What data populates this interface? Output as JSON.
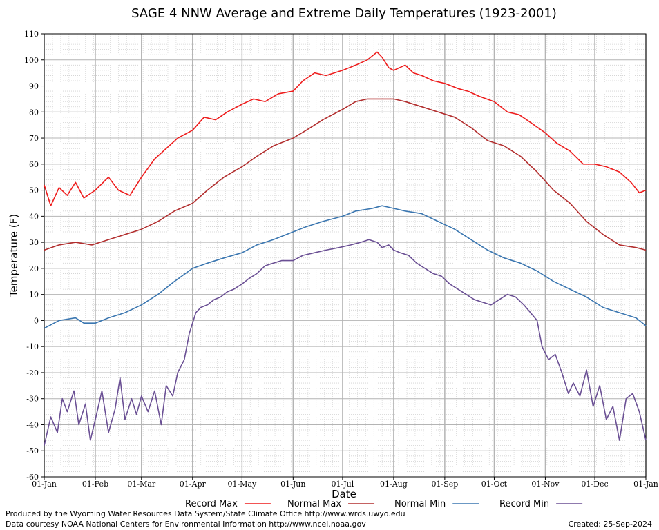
{
  "chart_data": {
    "type": "line",
    "title": "SAGE 4 NNW Average and Extreme Daily Temperatures (1923-2001)",
    "xlabel": "Date",
    "ylabel": "Temperature (F)",
    "ylim": [
      -60,
      110
    ],
    "yticks": [
      -60,
      -50,
      -40,
      -30,
      -20,
      -10,
      0,
      10,
      20,
      30,
      40,
      50,
      60,
      70,
      80,
      90,
      100,
      110
    ],
    "xticks": [
      {
        "day": 1,
        "label": "01-Jan"
      },
      {
        "day": 32,
        "label": "01-Feb"
      },
      {
        "day": 60,
        "label": "01-Mar"
      },
      {
        "day": 91,
        "label": "01-Apr"
      },
      {
        "day": 121,
        "label": "01-May"
      },
      {
        "day": 152,
        "label": "01-Jun"
      },
      {
        "day": 182,
        "label": "01-Jul"
      },
      {
        "day": 213,
        "label": "01-Aug"
      },
      {
        "day": 244,
        "label": "01-Sep"
      },
      {
        "day": 274,
        "label": "01-Oct"
      },
      {
        "day": 305,
        "label": "01-Nov"
      },
      {
        "day": 335,
        "label": "01-Dec"
      },
      {
        "day": 366,
        "label": "01-Jan"
      }
    ],
    "grid": true,
    "legend_position": "bottom",
    "series": [
      {
        "name": "Record Max",
        "color": "#ee1c1c",
        "x": [
          1,
          5,
          10,
          15,
          20,
          25,
          32,
          40,
          46,
          53,
          60,
          68,
          75,
          82,
          91,
          98,
          105,
          112,
          121,
          128,
          135,
          143,
          152,
          158,
          165,
          172,
          182,
          190,
          197,
          203,
          206,
          210,
          213,
          220,
          225,
          230,
          237,
          244,
          252,
          258,
          265,
          274,
          282,
          289,
          296,
          305,
          312,
          320,
          328,
          335,
          342,
          350,
          357,
          362,
          366
        ],
        "values": [
          52,
          44,
          51,
          48,
          53,
          47,
          50,
          55,
          50,
          48,
          55,
          62,
          66,
          70,
          73,
          78,
          77,
          80,
          83,
          85,
          84,
          87,
          88,
          92,
          95,
          94,
          96,
          98,
          100,
          103,
          101,
          97,
          96,
          98,
          95,
          94,
          92,
          91,
          89,
          88,
          86,
          84,
          80,
          79,
          76,
          72,
          68,
          65,
          60,
          60,
          59,
          57,
          53,
          49,
          50
        ]
      },
      {
        "name": "Normal Max",
        "color": "#b22e2e",
        "x": [
          1,
          10,
          20,
          30,
          40,
          50,
          60,
          70,
          80,
          91,
          100,
          110,
          121,
          130,
          140,
          152,
          160,
          170,
          182,
          190,
          197,
          205,
          213,
          220,
          230,
          240,
          250,
          260,
          270,
          280,
          290,
          300,
          310,
          320,
          330,
          340,
          350,
          360,
          366
        ],
        "values": [
          27,
          29,
          30,
          29,
          31,
          33,
          35,
          38,
          42,
          45,
          50,
          55,
          59,
          63,
          67,
          70,
          73,
          77,
          81,
          84,
          85,
          85,
          85,
          84,
          82,
          80,
          78,
          74,
          69,
          67,
          63,
          57,
          50,
          45,
          38,
          33,
          29,
          28,
          27
        ]
      },
      {
        "name": "Normal Min",
        "color": "#3a76b0",
        "x": [
          1,
          10,
          20,
          25,
          32,
          40,
          50,
          60,
          70,
          80,
          91,
          100,
          110,
          121,
          130,
          140,
          152,
          160,
          170,
          182,
          190,
          200,
          206,
          213,
          220,
          230,
          240,
          250,
          260,
          270,
          280,
          290,
          300,
          310,
          320,
          330,
          340,
          350,
          360,
          366
        ],
        "values": [
          -3,
          0,
          1,
          -1,
          -1,
          1,
          3,
          6,
          10,
          15,
          20,
          22,
          24,
          26,
          29,
          31,
          34,
          36,
          38,
          40,
          42,
          43,
          44,
          43,
          42,
          41,
          38,
          35,
          31,
          27,
          24,
          22,
          19,
          15,
          12,
          9,
          5,
          3,
          1,
          -2
        ]
      },
      {
        "name": "Record Min",
        "color": "#6a4f94",
        "x": [
          1,
          5,
          9,
          12,
          15,
          19,
          22,
          26,
          29,
          32,
          36,
          40,
          44,
          47,
          50,
          54,
          57,
          60,
          64,
          68,
          72,
          75,
          79,
          82,
          86,
          89,
          93,
          96,
          100,
          104,
          108,
          112,
          116,
          121,
          125,
          130,
          135,
          140,
          145,
          152,
          158,
          165,
          172,
          180,
          187,
          193,
          198,
          203,
          206,
          210,
          213,
          217,
          222,
          227,
          232,
          237,
          242,
          247,
          252,
          257,
          262,
          267,
          272,
          277,
          282,
          287,
          292,
          296,
          300,
          303,
          307,
          311,
          315,
          319,
          322,
          326,
          330,
          334,
          338,
          342,
          346,
          350,
          354,
          358,
          362,
          366
        ],
        "values": [
          -48,
          -37,
          -43,
          -30,
          -35,
          -27,
          -40,
          -32,
          -46,
          -38,
          -27,
          -43,
          -34,
          -22,
          -38,
          -30,
          -36,
          -29,
          -35,
          -27,
          -40,
          -25,
          -29,
          -20,
          -15,
          -5,
          3,
          5,
          6,
          8,
          9,
          11,
          12,
          14,
          16,
          18,
          21,
          22,
          23,
          23,
          25,
          26,
          27,
          28,
          29,
          30,
          31,
          30,
          28,
          29,
          27,
          26,
          25,
          22,
          20,
          18,
          17,
          14,
          12,
          10,
          8,
          7,
          6,
          8,
          10,
          9,
          6,
          3,
          0,
          -10,
          -15,
          -13,
          -20,
          -28,
          -24,
          -29,
          -19,
          -33,
          -25,
          -38,
          -33,
          -46,
          -30,
          -28,
          -35,
          -46
        ]
      }
    ]
  },
  "footer": {
    "left1": "Produced by the Wyoming Water Resources Data System/State Climate Office http://www.wrds.uwyo.edu",
    "left2": "Data courtesy NOAA National Centers for Environmental Information http://www.ncei.noaa.gov",
    "created": "Created:  25-Sep-2024"
  }
}
